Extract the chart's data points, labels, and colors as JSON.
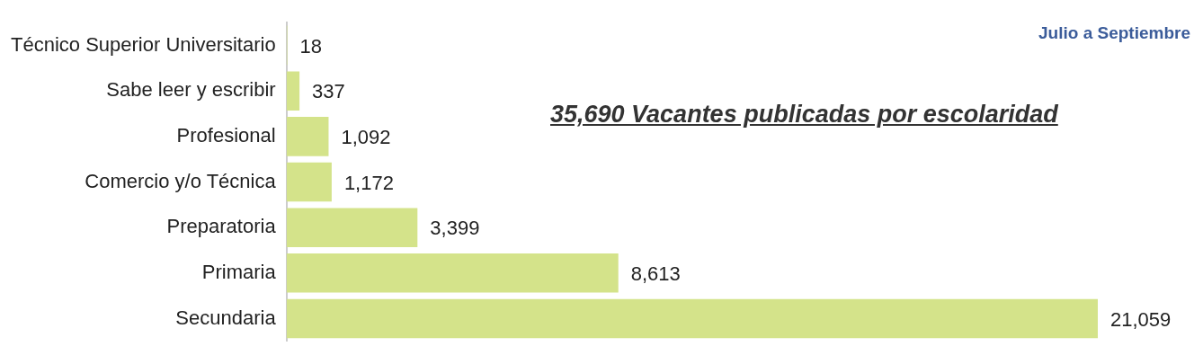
{
  "chart_data": {
    "type": "bar",
    "orientation": "horizontal",
    "title": "35,690 Vacantes publicadas por escolaridad",
    "subtitle": "Julio a Septiembre",
    "categories": [
      "Técnico Superior Universitario",
      "Sabe leer y escribir",
      "Profesional",
      "Comercio y/o Técnica",
      "Preparatoria",
      "Primaria",
      "Secundaria"
    ],
    "values": [
      18,
      337,
      1092,
      1172,
      3399,
      8613,
      21059
    ],
    "value_labels": [
      "18",
      "337",
      "1,092",
      "1,172",
      "3,399",
      "8,613",
      "21,059"
    ],
    "color": "#d4e38a",
    "grid": false,
    "legend": false,
    "tick_labels": "y"
  }
}
